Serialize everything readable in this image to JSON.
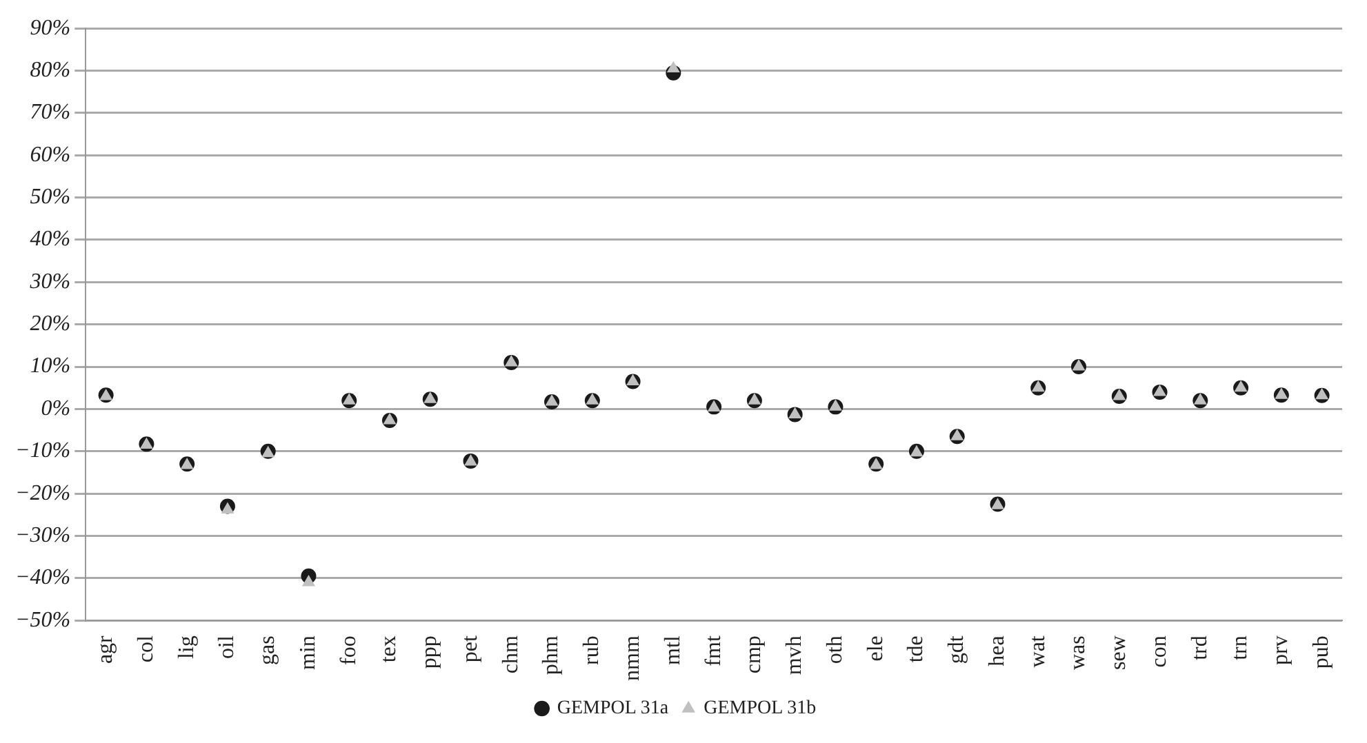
{
  "chart_data": {
    "type": "scatter",
    "categories": [
      "agr",
      "col",
      "lig",
      "oil",
      "gas",
      "min",
      "foo",
      "tex",
      "ppp",
      "pet",
      "chm",
      "phm",
      "rub",
      "nmm",
      "mtl",
      "fmt",
      "cmp",
      "mvh",
      "oth",
      "ele",
      "tde",
      "gdt",
      "hea",
      "wat",
      "was",
      "sew",
      "con",
      "trd",
      "trn",
      "prv",
      "pub"
    ],
    "series": [
      {
        "name": "GEMPOL 31a",
        "color": "#1a1a1a",
        "marker": "circle",
        "values": [
          3.3,
          -8.3,
          -13,
          -23,
          -10,
          -39.5,
          2,
          -2.7,
          2.3,
          -12.3,
          11,
          1.7,
          2,
          6.5,
          79.5,
          0.5,
          2,
          -1.3,
          0.5,
          -13,
          -10,
          -6.5,
          -22.5,
          5,
          10,
          3,
          4,
          2,
          5,
          3.3,
          3.2
        ]
      },
      {
        "name": "GEMPOL 31b",
        "color": "#c0c0c0",
        "marker": "triangle",
        "values": [
          3,
          -8.5,
          -13.3,
          -23.8,
          -10.5,
          -41,
          2,
          -2.7,
          2.3,
          -12.5,
          11,
          1.7,
          2,
          6.5,
          80.5,
          0.3,
          2,
          -1.3,
          0.5,
          -13.3,
          -10.3,
          -6.5,
          -22.8,
          5,
          10,
          3,
          4,
          2,
          5,
          3.3,
          3.2
        ]
      }
    ],
    "ylim": [
      -50,
      90
    ],
    "yticks": [
      {
        "value": -50,
        "label": "−50%"
      },
      {
        "value": -40,
        "label": "−40%"
      },
      {
        "value": -30,
        "label": "−30%"
      },
      {
        "value": -20,
        "label": "−20%"
      },
      {
        "value": -10,
        "label": "−10%"
      },
      {
        "value": 0,
        "label": "0%"
      },
      {
        "value": 10,
        "label": "10%"
      },
      {
        "value": 20,
        "label": "20%"
      },
      {
        "value": 30,
        "label": "30%"
      },
      {
        "value": 40,
        "label": "40%"
      },
      {
        "value": 50,
        "label": "50%"
      },
      {
        "value": 60,
        "label": "60%"
      },
      {
        "value": 70,
        "label": "70%"
      },
      {
        "value": 80,
        "label": "80%"
      },
      {
        "value": 90,
        "label": "90%"
      }
    ],
    "grid": "y",
    "legend": "bottom"
  }
}
